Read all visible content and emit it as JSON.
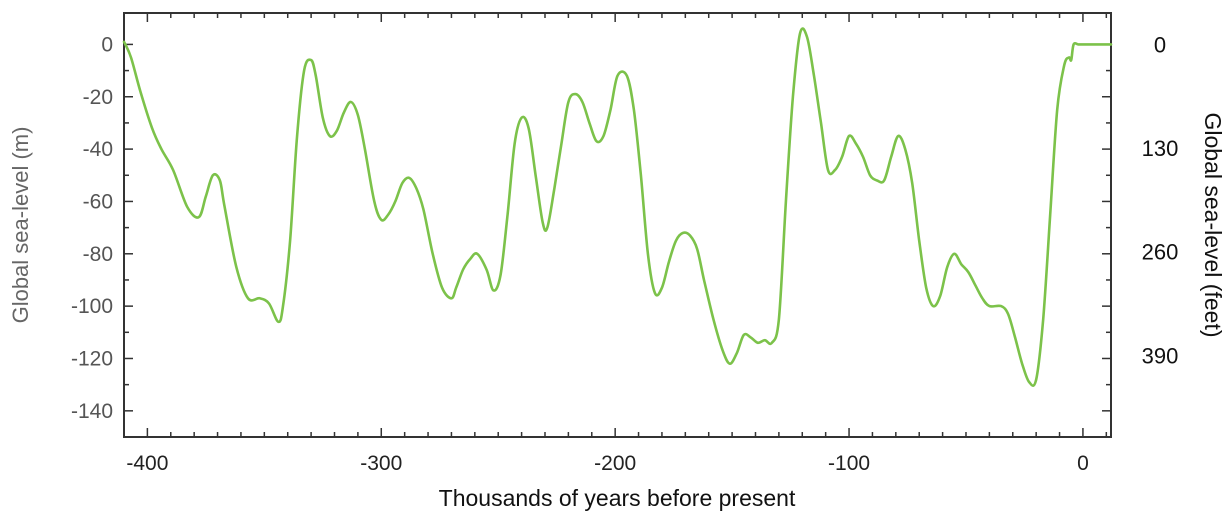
{
  "chart_data": {
    "type": "line",
    "title": "",
    "xlabel": "Thousands of years before present",
    "ylabel": "Global sea-level (m)",
    "ylabel_right": "Global sea-level (feet)",
    "xlim": [
      -410,
      12
    ],
    "ylim": [
      -150,
      12
    ],
    "x_ticks": [
      -400,
      -300,
      -200,
      -100,
      0
    ],
    "x_tick_labels": [
      "-400",
      "-300",
      "-200",
      "-100",
      "0"
    ],
    "y_ticks": [
      0,
      -20,
      -40,
      -60,
      -80,
      -100,
      -120,
      -140
    ],
    "y_tick_labels": [
      "0",
      "-20",
      "-40",
      "-60",
      "-80",
      "-100",
      "-120",
      "-140"
    ],
    "y_right_ticks_m": [
      0,
      -39.6,
      -79.2,
      -118.9
    ],
    "y_right_tick_labels": [
      "0",
      "130",
      "260",
      "390"
    ],
    "grid": false,
    "line_color": "#7cc24a",
    "series": [
      {
        "x": [
          -410,
          -407,
          -403,
          -398,
          -394,
          -389,
          -383,
          -378,
          -375,
          -372,
          -369,
          -367,
          -362,
          -357,
          -352,
          -348,
          -344,
          -342,
          -339,
          -336,
          -333,
          -330,
          -328,
          -325,
          -322,
          -319,
          -316,
          -313,
          -310,
          -307,
          -303,
          -300,
          -297,
          -294,
          -291,
          -288,
          -285,
          -282,
          -278,
          -274,
          -270,
          -268,
          -265,
          -262,
          -259,
          -255,
          -252,
          -249,
          -246,
          -243,
          -240,
          -237,
          -234,
          -231,
          -229,
          -226,
          -223,
          -220,
          -217,
          -214,
          -211,
          -208,
          -205,
          -202,
          -199,
          -195,
          -192,
          -189,
          -186,
          -183,
          -180,
          -177,
          -174,
          -171,
          -168,
          -165,
          -162,
          -158,
          -154,
          -151,
          -148,
          -145,
          -142,
          -139,
          -136,
          -133,
          -130,
          -127,
          -124,
          -121,
          -118,
          -115,
          -112,
          -109,
          -106,
          -103,
          -100,
          -97,
          -94,
          -91,
          -88,
          -85,
          -82,
          -79,
          -76,
          -73,
          -70,
          -67,
          -64,
          -61,
          -58,
          -55,
          -52,
          -49,
          -46,
          -43,
          -40,
          -35,
          -32,
          -29,
          -26,
          -23,
          -20,
          -17,
          -14,
          -11,
          -8,
          -6,
          -5,
          -4,
          -2,
          0,
          5,
          12
        ],
        "values": [
          1,
          -5,
          -18,
          -32,
          -40,
          -48,
          -62,
          -66,
          -58,
          -50,
          -52,
          -62,
          -85,
          -97,
          -97,
          -99,
          -106,
          -100,
          -75,
          -35,
          -10,
          -6,
          -12,
          -28,
          -35,
          -33,
          -26,
          -22,
          -27,
          -40,
          -60,
          -67,
          -65,
          -60,
          -53,
          -51,
          -55,
          -63,
          -80,
          -93,
          -97,
          -93,
          -86,
          -82,
          -80,
          -86,
          -94,
          -88,
          -65,
          -38,
          -28,
          -32,
          -50,
          -68,
          -70,
          -55,
          -38,
          -22,
          -19,
          -22,
          -30,
          -37,
          -35,
          -25,
          -12,
          -12,
          -25,
          -50,
          -80,
          -95,
          -93,
          -83,
          -75,
          -72,
          -73,
          -78,
          -90,
          -105,
          -117,
          -122,
          -118,
          -111,
          -112,
          -114,
          -113,
          -114,
          -105,
          -60,
          -20,
          4,
          3,
          -12,
          -30,
          -48,
          -48,
          -43,
          -35,
          -38,
          -43,
          -50,
          -52,
          -52,
          -43,
          -35,
          -40,
          -53,
          -75,
          -93,
          -100,
          -96,
          -85,
          -80,
          -84,
          -87,
          -92,
          -97,
          -100,
          -100,
          -103,
          -112,
          -122,
          -129,
          -128,
          -105,
          -65,
          -25,
          -8,
          -5,
          -6,
          0,
          0,
          0,
          0,
          0
        ]
      }
    ]
  }
}
